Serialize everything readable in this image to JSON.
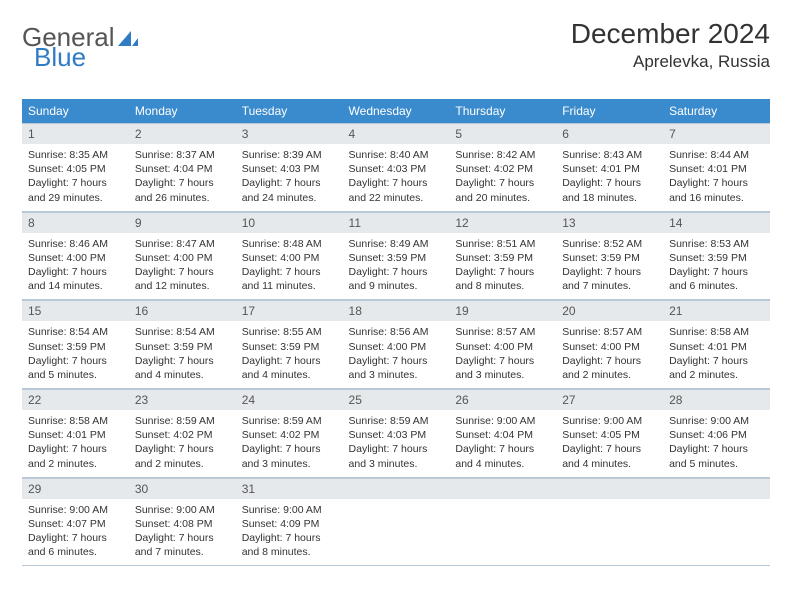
{
  "brand": {
    "word1": "General",
    "word2": "Blue",
    "accent": "#2f7cc4"
  },
  "title": "December 2024",
  "location": "Aprelevka, Russia",
  "day_headers": [
    "Sunday",
    "Monday",
    "Tuesday",
    "Wednesday",
    "Thursday",
    "Friday",
    "Saturday"
  ],
  "colors": {
    "header_bg": "#3a8bcd",
    "header_text": "#ffffff",
    "daynum_bg": "#e6e9ec",
    "rule": "#b8c8d6"
  },
  "days": [
    {
      "n": "1",
      "sunrise": "Sunrise: 8:35 AM",
      "sunset": "Sunset: 4:05 PM",
      "daylight": "Daylight: 7 hours and 29 minutes."
    },
    {
      "n": "2",
      "sunrise": "Sunrise: 8:37 AM",
      "sunset": "Sunset: 4:04 PM",
      "daylight": "Daylight: 7 hours and 26 minutes."
    },
    {
      "n": "3",
      "sunrise": "Sunrise: 8:39 AM",
      "sunset": "Sunset: 4:03 PM",
      "daylight": "Daylight: 7 hours and 24 minutes."
    },
    {
      "n": "4",
      "sunrise": "Sunrise: 8:40 AM",
      "sunset": "Sunset: 4:03 PM",
      "daylight": "Daylight: 7 hours and 22 minutes."
    },
    {
      "n": "5",
      "sunrise": "Sunrise: 8:42 AM",
      "sunset": "Sunset: 4:02 PM",
      "daylight": "Daylight: 7 hours and 20 minutes."
    },
    {
      "n": "6",
      "sunrise": "Sunrise: 8:43 AM",
      "sunset": "Sunset: 4:01 PM",
      "daylight": "Daylight: 7 hours and 18 minutes."
    },
    {
      "n": "7",
      "sunrise": "Sunrise: 8:44 AM",
      "sunset": "Sunset: 4:01 PM",
      "daylight": "Daylight: 7 hours and 16 minutes."
    },
    {
      "n": "8",
      "sunrise": "Sunrise: 8:46 AM",
      "sunset": "Sunset: 4:00 PM",
      "daylight": "Daylight: 7 hours and 14 minutes."
    },
    {
      "n": "9",
      "sunrise": "Sunrise: 8:47 AM",
      "sunset": "Sunset: 4:00 PM",
      "daylight": "Daylight: 7 hours and 12 minutes."
    },
    {
      "n": "10",
      "sunrise": "Sunrise: 8:48 AM",
      "sunset": "Sunset: 4:00 PM",
      "daylight": "Daylight: 7 hours and 11 minutes."
    },
    {
      "n": "11",
      "sunrise": "Sunrise: 8:49 AM",
      "sunset": "Sunset: 3:59 PM",
      "daylight": "Daylight: 7 hours and 9 minutes."
    },
    {
      "n": "12",
      "sunrise": "Sunrise: 8:51 AM",
      "sunset": "Sunset: 3:59 PM",
      "daylight": "Daylight: 7 hours and 8 minutes."
    },
    {
      "n": "13",
      "sunrise": "Sunrise: 8:52 AM",
      "sunset": "Sunset: 3:59 PM",
      "daylight": "Daylight: 7 hours and 7 minutes."
    },
    {
      "n": "14",
      "sunrise": "Sunrise: 8:53 AM",
      "sunset": "Sunset: 3:59 PM",
      "daylight": "Daylight: 7 hours and 6 minutes."
    },
    {
      "n": "15",
      "sunrise": "Sunrise: 8:54 AM",
      "sunset": "Sunset: 3:59 PM",
      "daylight": "Daylight: 7 hours and 5 minutes."
    },
    {
      "n": "16",
      "sunrise": "Sunrise: 8:54 AM",
      "sunset": "Sunset: 3:59 PM",
      "daylight": "Daylight: 7 hours and 4 minutes."
    },
    {
      "n": "17",
      "sunrise": "Sunrise: 8:55 AM",
      "sunset": "Sunset: 3:59 PM",
      "daylight": "Daylight: 7 hours and 4 minutes."
    },
    {
      "n": "18",
      "sunrise": "Sunrise: 8:56 AM",
      "sunset": "Sunset: 4:00 PM",
      "daylight": "Daylight: 7 hours and 3 minutes."
    },
    {
      "n": "19",
      "sunrise": "Sunrise: 8:57 AM",
      "sunset": "Sunset: 4:00 PM",
      "daylight": "Daylight: 7 hours and 3 minutes."
    },
    {
      "n": "20",
      "sunrise": "Sunrise: 8:57 AM",
      "sunset": "Sunset: 4:00 PM",
      "daylight": "Daylight: 7 hours and 2 minutes."
    },
    {
      "n": "21",
      "sunrise": "Sunrise: 8:58 AM",
      "sunset": "Sunset: 4:01 PM",
      "daylight": "Daylight: 7 hours and 2 minutes."
    },
    {
      "n": "22",
      "sunrise": "Sunrise: 8:58 AM",
      "sunset": "Sunset: 4:01 PM",
      "daylight": "Daylight: 7 hours and 2 minutes."
    },
    {
      "n": "23",
      "sunrise": "Sunrise: 8:59 AM",
      "sunset": "Sunset: 4:02 PM",
      "daylight": "Daylight: 7 hours and 2 minutes."
    },
    {
      "n": "24",
      "sunrise": "Sunrise: 8:59 AM",
      "sunset": "Sunset: 4:02 PM",
      "daylight": "Daylight: 7 hours and 3 minutes."
    },
    {
      "n": "25",
      "sunrise": "Sunrise: 8:59 AM",
      "sunset": "Sunset: 4:03 PM",
      "daylight": "Daylight: 7 hours and 3 minutes."
    },
    {
      "n": "26",
      "sunrise": "Sunrise: 9:00 AM",
      "sunset": "Sunset: 4:04 PM",
      "daylight": "Daylight: 7 hours and 4 minutes."
    },
    {
      "n": "27",
      "sunrise": "Sunrise: 9:00 AM",
      "sunset": "Sunset: 4:05 PM",
      "daylight": "Daylight: 7 hours and 4 minutes."
    },
    {
      "n": "28",
      "sunrise": "Sunrise: 9:00 AM",
      "sunset": "Sunset: 4:06 PM",
      "daylight": "Daylight: 7 hours and 5 minutes."
    },
    {
      "n": "29",
      "sunrise": "Sunrise: 9:00 AM",
      "sunset": "Sunset: 4:07 PM",
      "daylight": "Daylight: 7 hours and 6 minutes."
    },
    {
      "n": "30",
      "sunrise": "Sunrise: 9:00 AM",
      "sunset": "Sunset: 4:08 PM",
      "daylight": "Daylight: 7 hours and 7 minutes."
    },
    {
      "n": "31",
      "sunrise": "Sunrise: 9:00 AM",
      "sunset": "Sunset: 4:09 PM",
      "daylight": "Daylight: 7 hours and 8 minutes."
    }
  ],
  "layout": {
    "start_offset": 0,
    "cells": 35
  }
}
